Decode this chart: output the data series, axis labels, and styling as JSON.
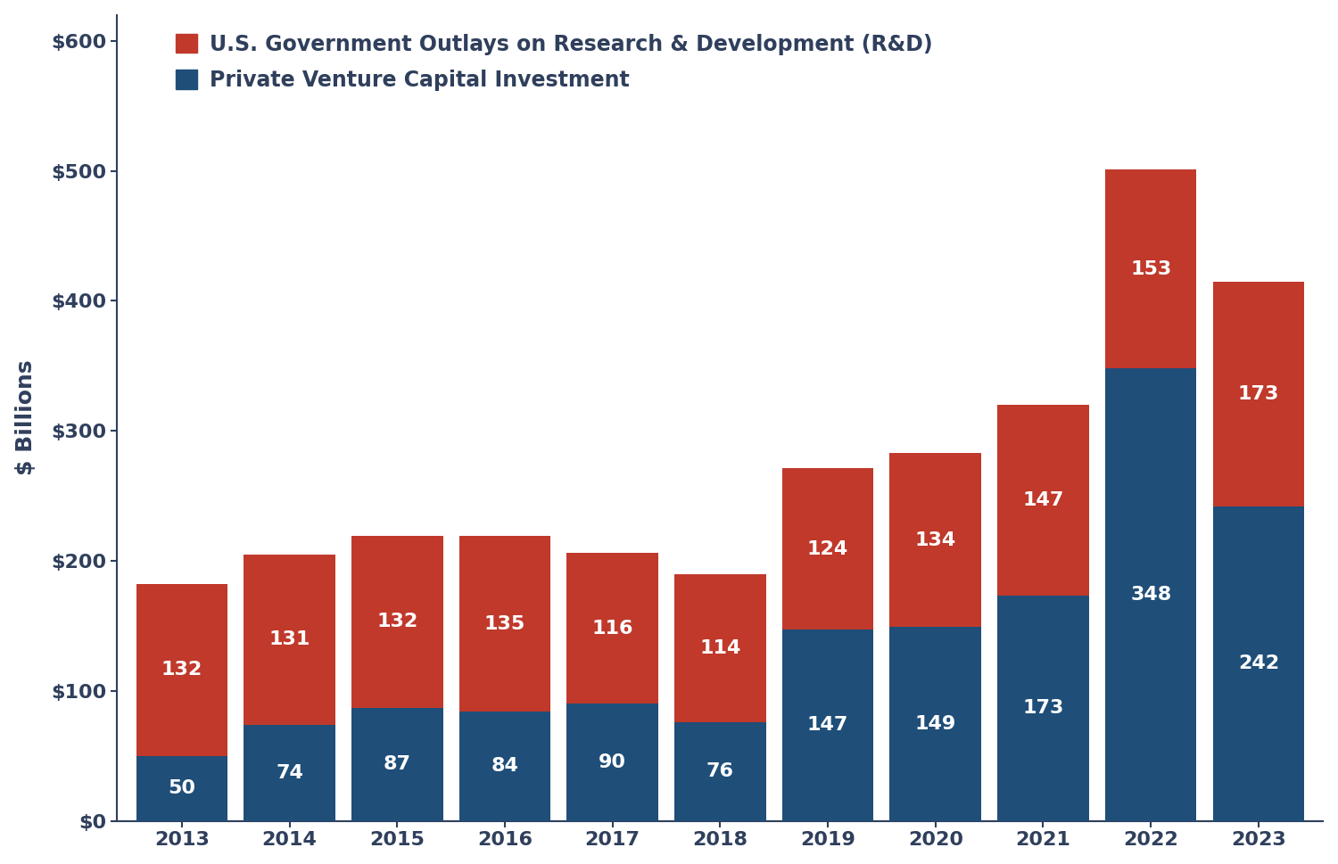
{
  "years": [
    "2013",
    "2014",
    "2015",
    "2016",
    "2017",
    "2018",
    "2019",
    "2020",
    "2021",
    "2022",
    "2023"
  ],
  "private_vc": [
    50,
    74,
    87,
    84,
    90,
    76,
    147,
    149,
    173,
    348,
    242
  ],
  "gov_rd": [
    132,
    131,
    132,
    135,
    116,
    114,
    124,
    134,
    147,
    153,
    173
  ],
  "private_color": "#1F4E79",
  "gov_color": "#C0392B",
  "private_label": "Private Venture Capital Investment",
  "gov_label": "U.S. Government Outlays on Research & Development (R&D)",
  "ylabel": "$ Billions",
  "ylim": [
    0,
    620
  ],
  "yticks": [
    0,
    100,
    200,
    300,
    400,
    500,
    600
  ],
  "ytick_labels": [
    "$0",
    "$100",
    "$200",
    "$300",
    "$400",
    "$500",
    "$600"
  ],
  "bar_width": 0.85,
  "background_color": "#FFFFFF",
  "legend_fontsize": 17,
  "tick_fontsize": 16,
  "ylabel_fontsize": 18,
  "bar_label_fontsize": 16,
  "spine_color": "#2F3F5C",
  "text_color": "#2F3F5C"
}
